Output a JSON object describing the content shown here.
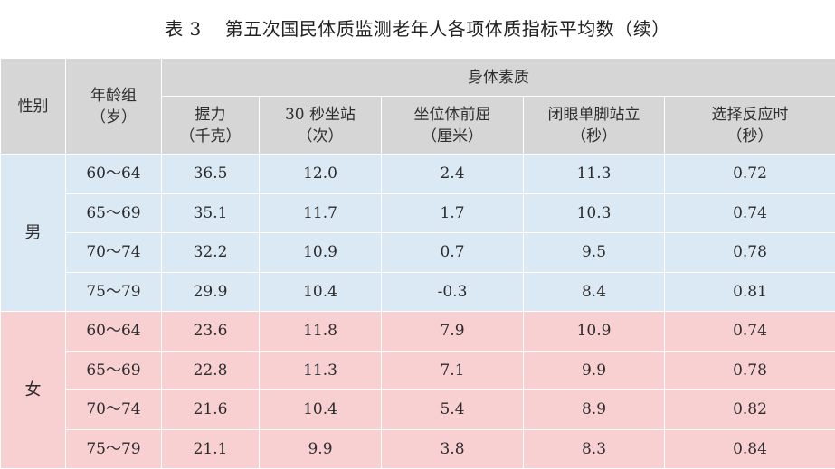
{
  "caption": {
    "number": "表 3",
    "title": "第五次国民体质监测老年人各项体质指标平均数（续）"
  },
  "header": {
    "sex": "性别",
    "age_group": [
      "年龄组",
      "（岁）"
    ],
    "group_title": "身体素质",
    "columns": [
      {
        "name": "握力",
        "unit": "（千克）"
      },
      {
        "name": "30 秒坐站",
        "unit": "（次）"
      },
      {
        "name": "坐位体前屈",
        "unit": "（厘米）"
      },
      {
        "name": "闭眼单脚站立",
        "unit": "（秒）"
      },
      {
        "name": "选择反应时",
        "unit": "（秒）"
      }
    ]
  },
  "colors": {
    "header_bg": "#d6d6d6",
    "male_bg": "#dbe9f5",
    "female_bg": "#f8d0d2"
  },
  "groups": [
    {
      "sex": "男",
      "rows": [
        {
          "age": "60～64",
          "values": [
            "36.5",
            "12.0",
            "2.4",
            "11.3",
            "0.72"
          ]
        },
        {
          "age": "65～69",
          "values": [
            "35.1",
            "11.7",
            "1.7",
            "10.3",
            "0.74"
          ]
        },
        {
          "age": "70～74",
          "values": [
            "32.2",
            "10.9",
            "0.7",
            "9.5",
            "0.78"
          ]
        },
        {
          "age": "75～79",
          "values": [
            "29.9",
            "10.4",
            "-0.3",
            "8.4",
            "0.81"
          ]
        }
      ]
    },
    {
      "sex": "女",
      "rows": [
        {
          "age": "60～64",
          "values": [
            "23.6",
            "11.8",
            "7.9",
            "10.9",
            "0.74"
          ]
        },
        {
          "age": "65～69",
          "values": [
            "22.8",
            "11.3",
            "7.1",
            "9.9",
            "0.78"
          ]
        },
        {
          "age": "70～74",
          "values": [
            "21.6",
            "10.4",
            "5.4",
            "8.9",
            "0.82"
          ]
        },
        {
          "age": "75～79",
          "values": [
            "21.1",
            "9.9",
            "3.8",
            "8.3",
            "0.84"
          ]
        }
      ]
    }
  ]
}
